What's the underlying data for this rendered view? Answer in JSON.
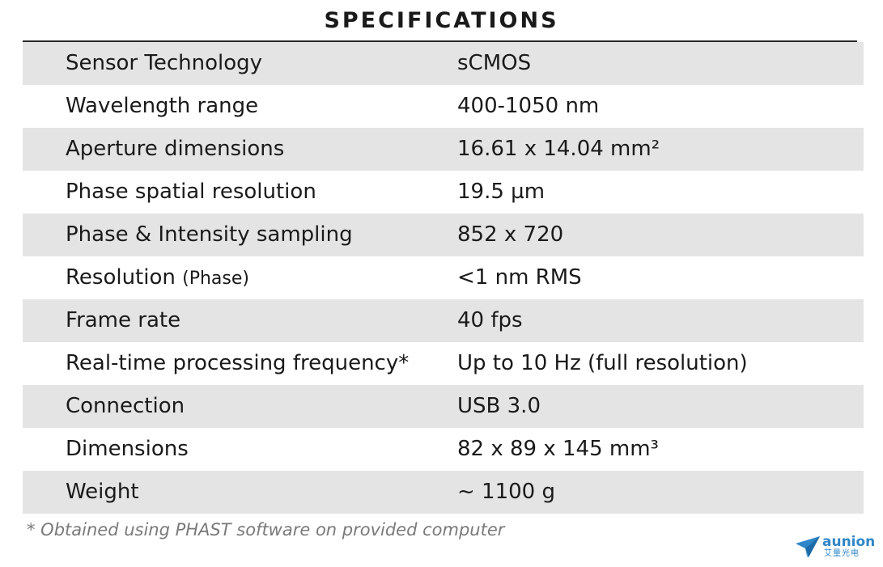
{
  "title": "SPECIFICATIONS",
  "rows": [
    {
      "label": "Sensor Technology",
      "value": "sCMOS"
    },
    {
      "label": "Wavelength range",
      "value": "400-1050 nm"
    },
    {
      "label": "Aperture dimensions",
      "value": "16.61 x 14.04 mm²"
    },
    {
      "label": "Phase spatial resolution",
      "value": "19.5 µm"
    },
    {
      "label": "Phase & Intensity sampling",
      "value": "852 x 720"
    },
    {
      "label": "Resolution",
      "label_suffix": "(Phase)",
      "value": "<1 nm RMS"
    },
    {
      "label": "Frame rate",
      "value": "40 fps"
    },
    {
      "label": "Real-time processing frequency*",
      "value": "Up to 10 Hz (full resolution)"
    },
    {
      "label": "Connection",
      "value": "USB 3.0"
    },
    {
      "label": "Dimensions",
      "value": "82 x 89 x 145 mm³"
    },
    {
      "label": "Weight",
      "value": "~ 1100 g"
    }
  ],
  "footnote": "* Obtained using PHAST software on provided computer",
  "logo": {
    "name": "aunion",
    "subtitle": "艾量光电",
    "icon": "paper-plane-icon",
    "color": "#2f86c8"
  },
  "colors": {
    "row_shade": "#e4e4e5",
    "text": "#1a1a1a",
    "footnote": "#7a7a7a"
  }
}
